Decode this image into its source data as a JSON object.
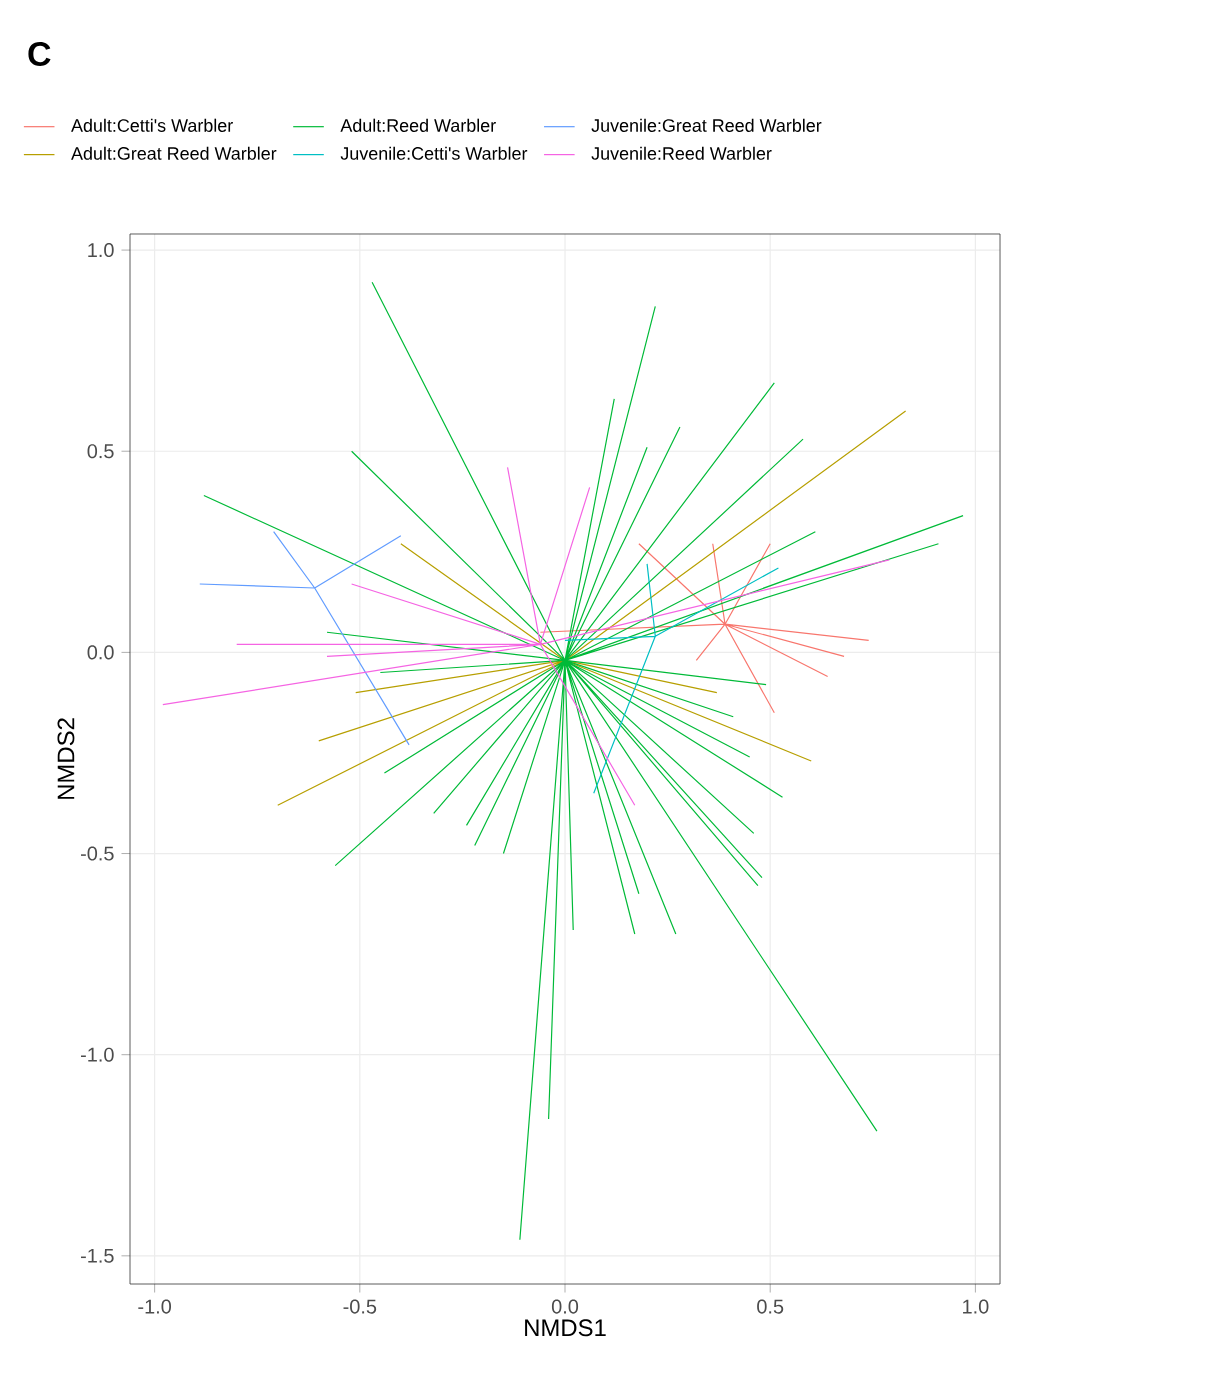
{
  "chart_data": {
    "type": "line",
    "title": "C",
    "xlabel": "NMDS1",
    "ylabel": "NMDS2",
    "xlim": [
      -1.06,
      1.06
    ],
    "ylim": [
      -1.57,
      1.04
    ],
    "xticks": [
      {
        "value": -1,
        "label": "-1.0"
      },
      {
        "value": -0.5,
        "label": "-0.5"
      },
      {
        "value": 0,
        "label": "0.0"
      },
      {
        "value": 0.5,
        "label": "0.5"
      },
      {
        "value": 1,
        "label": "1.0"
      }
    ],
    "yticks": [
      {
        "value": -1.5,
        "label": "-1.5"
      },
      {
        "value": -1,
        "label": "-1.0"
      },
      {
        "value": -0.5,
        "label": "-0.5"
      },
      {
        "value": 0,
        "label": "0.0"
      },
      {
        "value": 0.5,
        "label": "0.5"
      },
      {
        "value": 1,
        "label": "1.0"
      }
    ],
    "grid": true,
    "legend": "top",
    "marker": "none",
    "line_style": "solid",
    "series": [
      {
        "name": "Adult:Cetti's Warbler",
        "color": "#f8766d",
        "x": [
          0.39,
          0.74,
          null,
          0.39,
          0.68,
          null,
          0.39,
          0.64,
          null,
          0.39,
          0.51,
          null,
          0.39,
          0.32,
          null,
          0.39,
          0.18,
          null,
          0.39,
          0.36,
          null,
          0.39,
          -0.06,
          null,
          0.39,
          0.5
        ],
        "values": [
          0.07,
          0.03,
          null,
          0.07,
          -0.01,
          null,
          0.07,
          -0.06,
          null,
          0.07,
          -0.15,
          null,
          0.07,
          -0.02,
          null,
          0.07,
          0.27,
          null,
          0.07,
          0.27,
          null,
          0.07,
          0.05,
          null,
          0.07,
          0.27
        ]
      },
      {
        "name": "Adult:Great Reed Warbler",
        "color": "#b79f00",
        "x": [
          0,
          0.83,
          null,
          0,
          -0.7,
          null,
          0,
          -0.6,
          null,
          0,
          -0.51,
          null,
          0,
          0.6,
          null,
          0,
          -0.4,
          null,
          0,
          0.37
        ],
        "values": [
          -0.02,
          0.6,
          null,
          -0.02,
          -0.38,
          null,
          -0.02,
          -0.22,
          null,
          -0.02,
          -0.1,
          null,
          -0.02,
          -0.27,
          null,
          -0.02,
          0.27,
          null,
          -0.02,
          -0.1
        ]
      },
      {
        "name": "Adult:Reed Warbler",
        "color": "#00ba38",
        "x": [
          0,
          -0.47,
          null,
          0,
          -0.88,
          null,
          0,
          -0.52,
          null,
          0,
          0.22,
          null,
          0,
          0.51,
          null,
          0,
          0.58,
          null,
          0,
          0.97,
          null,
          0,
          0.91,
          null,
          0,
          0.61,
          null,
          0,
          0.12,
          null,
          0,
          0.28,
          null,
          0,
          0.2,
          null,
          0,
          0.76,
          null,
          0,
          -0.11,
          null,
          0,
          0.48,
          null,
          0,
          0.46,
          null,
          0,
          0.27,
          null,
          0,
          0.18,
          null,
          0,
          0.17,
          null,
          0,
          0.02,
          null,
          0,
          0.49,
          null,
          0,
          0.41,
          null,
          0,
          0.45,
          null,
          0,
          0.53,
          null,
          0,
          0.47,
          null,
          0,
          -0.56,
          null,
          0,
          -0.44,
          null,
          0,
          -0.32,
          null,
          0,
          -0.24,
          null,
          0,
          -0.15,
          null,
          0,
          -0.22,
          null,
          0,
          -0.04,
          null,
          0,
          -0.58,
          null,
          0,
          -0.45
        ],
        "values": [
          -0.02,
          0.92,
          null,
          -0.02,
          0.39,
          null,
          -0.02,
          0.5,
          null,
          -0.02,
          0.86,
          null,
          -0.02,
          0.67,
          null,
          -0.02,
          0.53,
          null,
          -0.02,
          0.34,
          null,
          -0.02,
          0.27,
          null,
          -0.02,
          0.3,
          null,
          -0.02,
          0.63,
          null,
          -0.02,
          0.56,
          null,
          -0.02,
          0.51,
          null,
          -0.02,
          -1.19,
          null,
          -0.02,
          -1.46,
          null,
          -0.02,
          -0.56,
          null,
          -0.02,
          -0.45,
          null,
          -0.02,
          -0.7,
          null,
          -0.02,
          -0.6,
          null,
          -0.02,
          -0.7,
          null,
          -0.02,
          -0.69,
          null,
          -0.02,
          -0.08,
          null,
          -0.02,
          -0.16,
          null,
          -0.02,
          -0.26,
          null,
          -0.02,
          -0.36,
          null,
          -0.02,
          -0.58,
          null,
          -0.02,
          -0.53,
          null,
          -0.02,
          -0.3,
          null,
          -0.02,
          -0.4,
          null,
          -0.02,
          -0.43,
          null,
          -0.02,
          -0.5,
          null,
          -0.02,
          -0.48,
          null,
          -0.02,
          -1.16,
          null,
          -0.02,
          0.05,
          null,
          -0.02,
          -0.05
        ]
      },
      {
        "name": "Juvenile:Cetti's Warbler",
        "color": "#00bfc4",
        "x": [
          0.22,
          0.52,
          null,
          0.22,
          0.2,
          null,
          0.22,
          0.07,
          null,
          0.22,
          0
        ],
        "values": [
          0.04,
          0.21,
          null,
          0.04,
          0.22,
          null,
          0.04,
          -0.35,
          null,
          0.04,
          0.03
        ]
      },
      {
        "name": "Juvenile:Great Reed Warbler",
        "color": "#619cff",
        "x": [
          -0.61,
          -0.89,
          null,
          -0.61,
          -0.71,
          null,
          -0.61,
          -0.4,
          null,
          -0.61,
          -0.38
        ],
        "values": [
          0.16,
          0.17,
          null,
          0.16,
          0.3,
          null,
          0.16,
          0.29,
          null,
          0.16,
          -0.23
        ]
      },
      {
        "name": "Juvenile:Reed Warbler",
        "color": "#f564e3",
        "x": [
          -0.06,
          -0.98,
          null,
          -0.06,
          -0.8,
          null,
          -0.06,
          -0.58,
          null,
          -0.06,
          -0.52,
          null,
          -0.06,
          0.79,
          null,
          -0.06,
          0.06,
          null,
          -0.06,
          0.17,
          null,
          -0.06,
          -0.14
        ],
        "values": [
          0.02,
          -0.13,
          null,
          0.02,
          0.02,
          null,
          0.02,
          -0.01,
          null,
          0.02,
          0.17,
          null,
          0.02,
          0.23,
          null,
          0.02,
          0.41,
          null,
          0.02,
          -0.38,
          null,
          0.02,
          0.46
        ]
      }
    ]
  }
}
